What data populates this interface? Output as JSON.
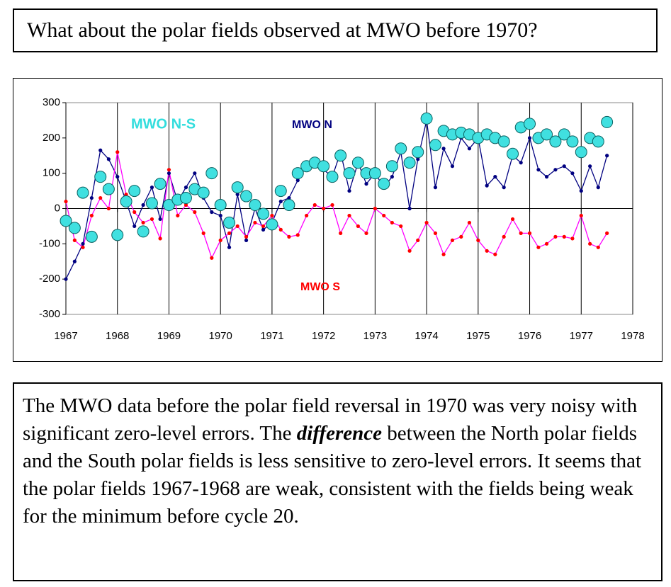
{
  "header": {
    "title": "What about the polar fields observed at MWO before 1970?"
  },
  "chart_data": {
    "type": "line",
    "x": [
      1967,
      1967.17,
      1967.33,
      1967.5,
      1967.67,
      1967.83,
      1968,
      1968.17,
      1968.33,
      1968.5,
      1968.67,
      1968.83,
      1969,
      1969.17,
      1969.33,
      1969.5,
      1969.67,
      1969.83,
      1970,
      1970.17,
      1970.33,
      1970.5,
      1970.67,
      1970.83,
      1971,
      1971.17,
      1971.33,
      1971.5,
      1971.67,
      1971.83,
      1972,
      1972.17,
      1972.33,
      1972.5,
      1972.67,
      1972.83,
      1973,
      1973.17,
      1973.33,
      1973.5,
      1973.67,
      1973.83,
      1974,
      1974.17,
      1974.33,
      1974.5,
      1974.67,
      1974.83,
      1975,
      1975.17,
      1975.33,
      1975.5,
      1975.67,
      1975.83,
      1976,
      1976.17,
      1976.33,
      1976.5,
      1976.67,
      1976.83,
      1977,
      1977.17,
      1977.33,
      1977.5
    ],
    "series": [
      {
        "name": "MWO N",
        "color": "#000080",
        "line_color": "#000080",
        "marker": "dot",
        "values": [
          -200,
          -150,
          -100,
          30,
          165,
          140,
          90,
          20,
          -50,
          10,
          60,
          -30,
          100,
          20,
          60,
          100,
          30,
          -10,
          -20,
          -110,
          40,
          -90,
          0,
          -60,
          -40,
          20,
          30,
          80,
          120,
          140,
          110,
          90,
          160,
          50,
          130,
          70,
          100,
          60,
          90,
          160,
          0,
          140,
          250,
          60,
          170,
          120,
          200,
          170,
          200,
          65,
          90,
          60,
          150,
          130,
          200,
          110,
          90,
          110,
          120,
          100,
          50,
          120,
          60,
          150
        ]
      },
      {
        "name": "MWO S",
        "color": "#ff0000",
        "line_color": "#ff00ff",
        "marker": "dot",
        "values": [
          20,
          -90,
          -110,
          -20,
          30,
          0,
          160,
          40,
          -10,
          -40,
          -30,
          -85,
          110,
          -20,
          10,
          -10,
          -70,
          -140,
          -90,
          -70,
          -50,
          -80,
          -40,
          -50,
          -20,
          -60,
          -80,
          -75,
          -20,
          10,
          0,
          10,
          -70,
          -20,
          -50,
          -70,
          0,
          -20,
          -40,
          -50,
          -120,
          -90,
          -40,
          -70,
          -130,
          -90,
          -80,
          -40,
          -90,
          -120,
          -130,
          -80,
          -30,
          -70,
          -70,
          -110,
          -100,
          -80,
          -80,
          -85,
          -20,
          -100,
          -110,
          -70
        ]
      },
      {
        "name": "MWO N-S",
        "color": "#40e0e0",
        "line_color": null,
        "marker": "circle",
        "values": [
          -35,
          -55,
          45,
          -80,
          90,
          55,
          -75,
          20,
          50,
          -65,
          15,
          70,
          10,
          25,
          30,
          55,
          45,
          100,
          10,
          -40,
          60,
          35,
          10,
          -15,
          -45,
          50,
          10,
          100,
          120,
          130,
          120,
          90,
          150,
          100,
          130,
          100,
          100,
          70,
          120,
          170,
          130,
          160,
          255,
          180,
          220,
          210,
          215,
          210,
          200,
          210,
          200,
          190,
          155,
          230,
          240,
          200,
          210,
          190,
          210,
          190,
          160,
          200,
          190,
          245
        ]
      }
    ],
    "xlim": [
      1967,
      1978
    ],
    "xticks": [
      1967,
      1968,
      1969,
      1970,
      1971,
      1972,
      1973,
      1974,
      1975,
      1976,
      1977,
      1978
    ],
    "ylim": [
      -300,
      300
    ],
    "yticks": [
      -300,
      -200,
      -100,
      0,
      100,
      200,
      300
    ],
    "x_grid": true
  },
  "text": {
    "before": "The MWO data before the polar field reversal in 1970 was very noisy with significant zero-level errors. The ",
    "emphasis": "difference",
    "after": " between the North polar fields and the South polar fields is less sensitive to zero-level errors. It seems that the polar fields 1967-1968 are weak, consistent with the fields being weak for the minimum before cycle 20."
  }
}
